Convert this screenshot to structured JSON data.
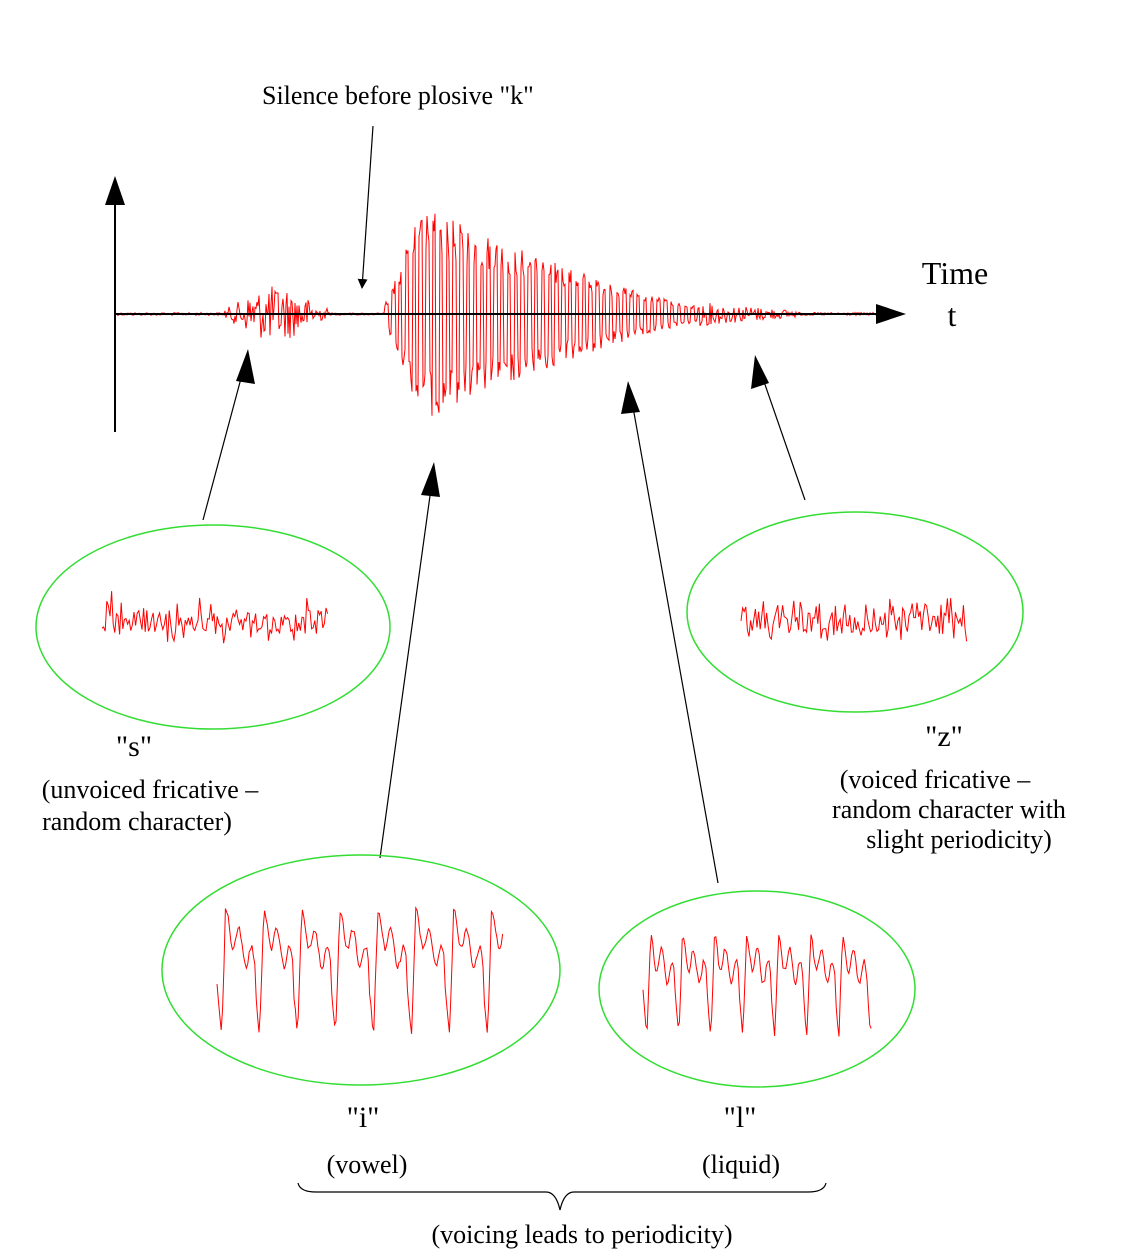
{
  "labels": {
    "silence": "Silence before plosive \"k\"",
    "time": "Time",
    "time_symbol": "t",
    "s": {
      "name": "\"s\"",
      "desc_line1": "(unvoiced fricative –",
      "desc_line2": "random character)"
    },
    "z": {
      "name": "\"z\"",
      "desc_line1": "(voiced fricative –",
      "desc_line2": "random character with",
      "desc_line3": "slight periodicity)"
    },
    "i": {
      "name": "\"i\"",
      "desc": "(vowel)"
    },
    "l": {
      "name": "\"l\"",
      "desc": "(liquid)"
    },
    "voicing": "(voicing leads to periodicity)"
  },
  "colors": {
    "waveform": "#ff0000",
    "ellipse": "#33dd33",
    "ink": "#000000"
  }
}
